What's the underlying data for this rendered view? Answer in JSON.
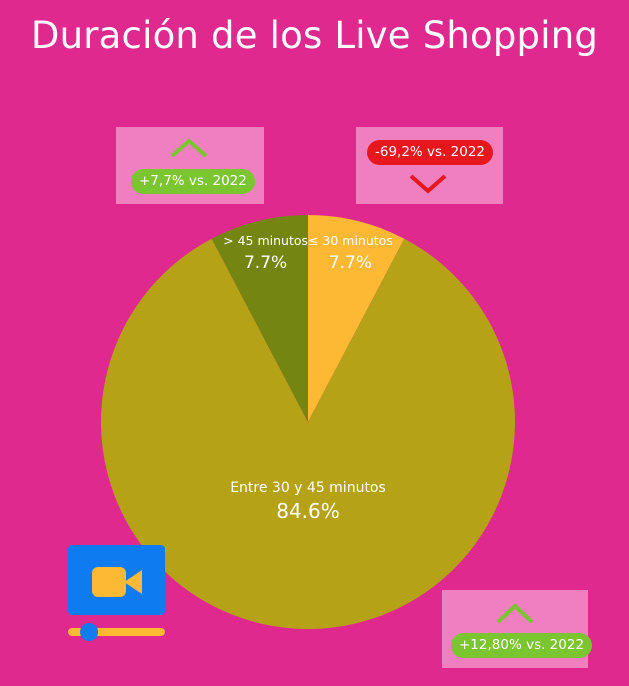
{
  "title": "Duración de los Live Shopping",
  "chart_data": {
    "type": "pie",
    "title": "Duración de los Live Shopping",
    "slices": [
      {
        "label": "≤ 30 minutos",
        "value": 7.7,
        "display": "7.7%",
        "color": "#fdb933"
      },
      {
        "label": "Entre 30 y 45 minutos",
        "value": 84.6,
        "display": "84.6%",
        "color": "#b5a216"
      },
      {
        "label": "> 45 minutos",
        "value": 7.7,
        "display": "7.7%",
        "color": "#748611"
      }
    ],
    "start_angle_deg": 0,
    "direction": "clockwise"
  },
  "callouts": {
    "gt45": {
      "text": "+7,7% vs. 2022",
      "trend": "up",
      "arrow_icon": "chevron-up-icon",
      "color": "#7bc531"
    },
    "le30": {
      "text": "-69,2% vs. 2022",
      "trend": "down",
      "arrow_icon": "chevron-down-icon",
      "color": "#e8171d"
    },
    "mid": {
      "text": "+12,80% vs. 2022",
      "trend": "up",
      "arrow_icon": "chevron-up-icon",
      "color": "#7bc531"
    }
  },
  "decoration": {
    "icon": "video-camera-icon",
    "screen_color": "#0e7bf0",
    "camera_color": "#fdb933",
    "slider_color": "#fdb933",
    "knob_color": "#0e7bf0"
  }
}
